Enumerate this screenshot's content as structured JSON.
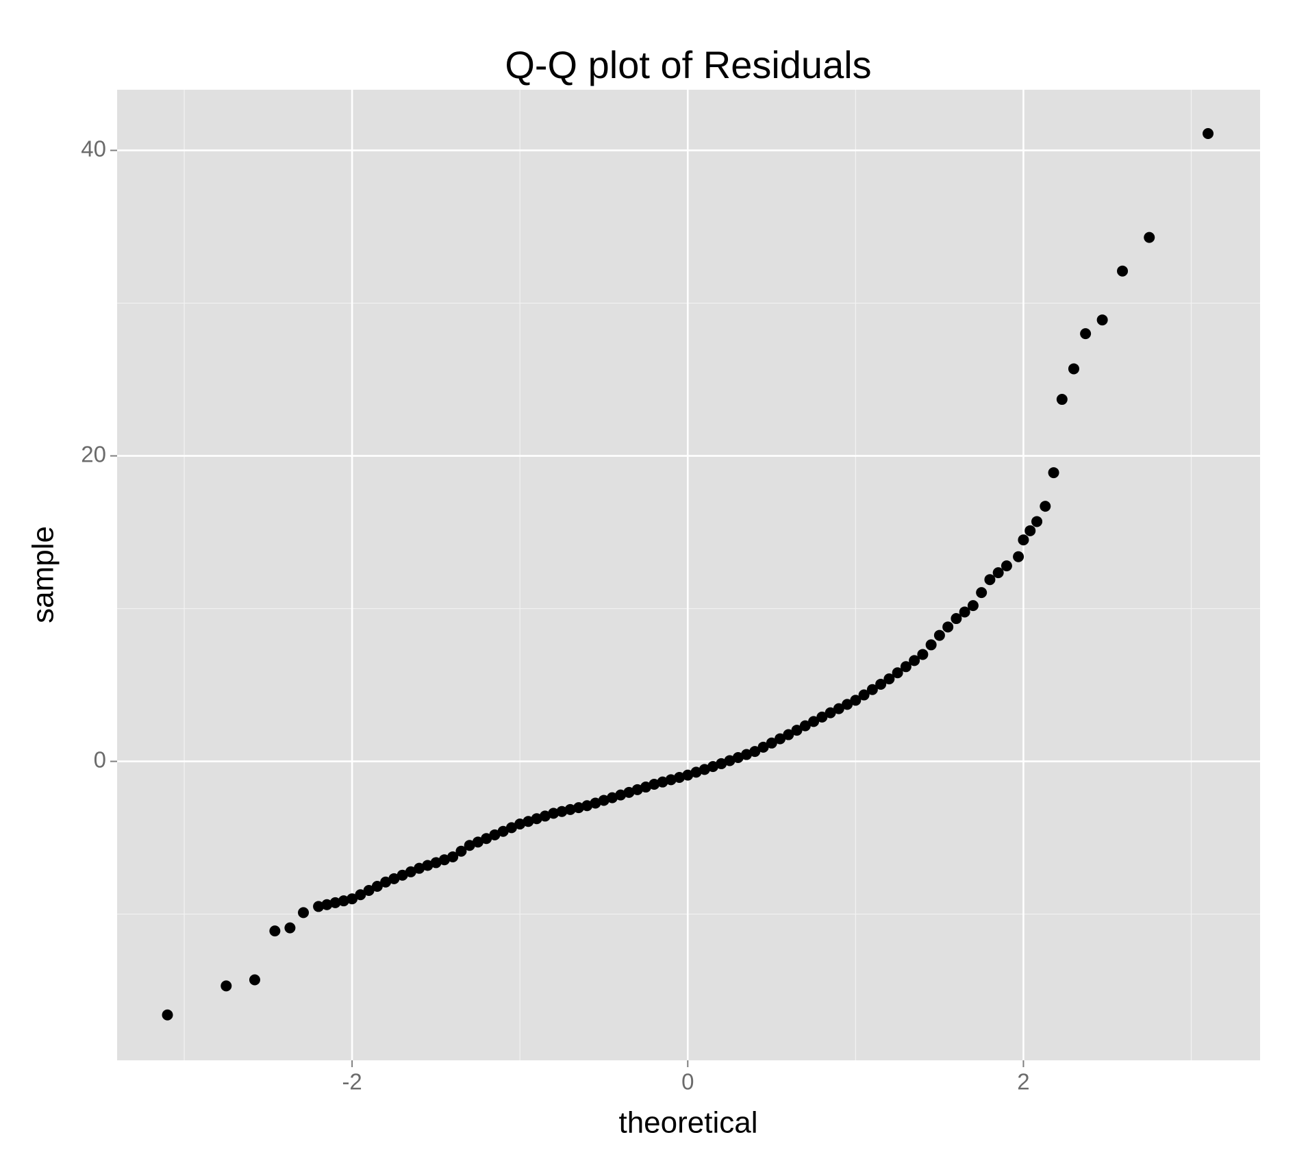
{
  "chart_data": {
    "type": "scatter",
    "title": "Q-Q plot of Residuals",
    "x_label": "theoretical",
    "y_label": "sample",
    "color": "#000000",
    "grid": true,
    "xlim": [
      -3.4,
      3.41
    ],
    "ylim": [
      -19.57,
      43.97
    ],
    "xticks": [
      -2,
      0,
      2
    ],
    "yticks": [
      0,
      20,
      40
    ],
    "x_minor_grid": [
      -3,
      -1,
      1,
      3
    ],
    "y_minor_grid": [
      -10,
      10,
      30
    ],
    "x": [
      -3.1,
      -2.75,
      -2.58,
      -2.46,
      -2.37,
      -2.29,
      -2.2,
      -2.15,
      -2.1,
      -2.05,
      -2.0,
      -1.95,
      -1.9,
      -1.85,
      -1.8,
      -1.75,
      -1.7,
      -1.65,
      -1.6,
      -1.55,
      -1.5,
      -1.45,
      -1.4,
      -1.35,
      -1.3,
      -1.25,
      -1.2,
      -1.15,
      -1.1,
      -1.05,
      -1.0,
      -0.95,
      -0.9,
      -0.85,
      -0.8,
      -0.75,
      -0.7,
      -0.65,
      -0.6,
      -0.55,
      -0.5,
      -0.45,
      -0.4,
      -0.35,
      -0.3,
      -0.25,
      -0.2,
      -0.15,
      -0.1,
      -0.05,
      0,
      0.05,
      0.1,
      0.15,
      0.2,
      0.25,
      0.3,
      0.35,
      0.4,
      0.45,
      0.5,
      0.55,
      0.6,
      0.65,
      0.7,
      0.75,
      0.8,
      0.85,
      0.9,
      0.95,
      1.0,
      1.05,
      1.1,
      1.15,
      1.2,
      1.25,
      1.3,
      1.35,
      1.4,
      1.45,
      1.5,
      1.55,
      1.6,
      1.65,
      1.7,
      1.75,
      1.8,
      1.85,
      1.9,
      1.97,
      2.0,
      2.04,
      2.08,
      2.13,
      2.18,
      2.23,
      2.3,
      2.37,
      2.47,
      2.59,
      2.75,
      3.1
    ],
    "values": [
      -16.6,
      -14.7,
      -14.3,
      -11.1,
      -10.9,
      -9.9,
      -9.5,
      -9.38,
      -9.25,
      -9.13,
      -9.0,
      -8.73,
      -8.45,
      -8.18,
      -7.9,
      -7.68,
      -7.45,
      -7.23,
      -7.0,
      -6.81,
      -6.63,
      -6.44,
      -6.25,
      -5.88,
      -5.5,
      -5.28,
      -5.05,
      -4.81,
      -4.58,
      -4.34,
      -4.1,
      -3.93,
      -3.75,
      -3.58,
      -3.4,
      -3.28,
      -3.15,
      -3.03,
      -2.9,
      -2.73,
      -2.55,
      -2.38,
      -2.2,
      -2.03,
      -1.85,
      -1.68,
      -1.5,
      -1.35,
      -1.2,
      -1.05,
      -0.9,
      -0.71,
      -0.53,
      -0.34,
      -0.15,
      0.05,
      0.25,
      0.45,
      0.65,
      0.93,
      1.2,
      1.48,
      1.75,
      2.04,
      2.33,
      2.61,
      2.9,
      3.18,
      3.45,
      3.73,
      4.0,
      4.35,
      4.7,
      5.05,
      5.4,
      5.8,
      6.2,
      6.6,
      7.0,
      7.63,
      8.25,
      8.8,
      9.35,
      9.78,
      10.2,
      11.05,
      11.9,
      12.35,
      12.8,
      13.4,
      14.5,
      15.1,
      15.7,
      16.7,
      18.9,
      23.7,
      25.7,
      28.0,
      28.9,
      32.1,
      34.3,
      41.1
    ]
  }
}
